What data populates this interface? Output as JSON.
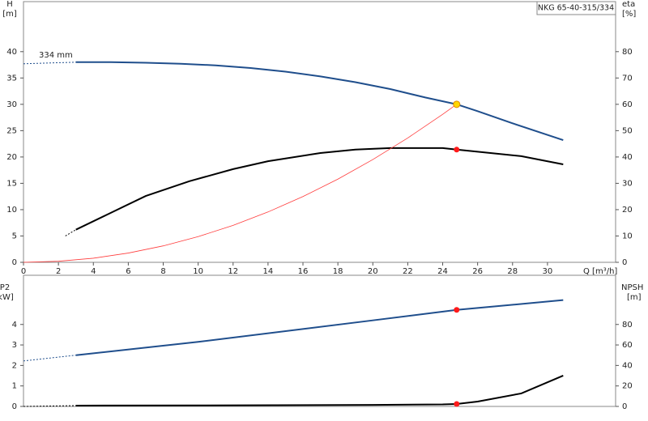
{
  "chart_data": [
    {
      "type": "line",
      "title": "NKG 65-40-315/334",
      "annotation": "334 mm",
      "xlabel": "Q [m³/h]",
      "ylabel": "H",
      "yunit": "[m]",
      "y2label": "eta",
      "y2unit": "[%]",
      "xlim": [
        0,
        33.9
      ],
      "xticks": [
        0,
        2,
        4,
        6,
        8,
        10,
        12,
        14,
        16,
        18,
        20,
        22,
        24,
        26,
        28,
        30
      ],
      "ylim": [
        0,
        49.5
      ],
      "yticks": [
        0,
        5,
        10,
        15,
        20,
        25,
        30,
        35,
        40
      ],
      "y2lim": [
        0,
        99
      ],
      "y2ticks": [
        0,
        10,
        20,
        30,
        40,
        50,
        60,
        70,
        80
      ],
      "series": [
        {
          "color": "#1f4e8c",
          "style": "dashed",
          "x": [
            0,
            3
          ],
          "values": [
            37.7,
            38
          ]
        },
        {
          "color": "#1f4e8c",
          "style": "solid",
          "x": [
            3,
            5,
            7,
            9,
            11,
            13,
            15,
            17,
            19,
            21,
            23,
            24.8,
            26,
            28,
            30.9
          ],
          "values": [
            38,
            38,
            37.9,
            37.7,
            37.4,
            36.9,
            36.2,
            35.3,
            34.2,
            32.9,
            31.3,
            30,
            28.7,
            26.4,
            23.2
          ]
        },
        {
          "color": "#000000",
          "style": "dashed",
          "axis": "y2",
          "x": [
            2.4,
            3
          ],
          "values": [
            10,
            12.4
          ]
        },
        {
          "color": "#000000",
          "style": "solid",
          "axis": "y2",
          "x": [
            3,
            5,
            7,
            9.5,
            12,
            14,
            17,
            19,
            21,
            24,
            24.8,
            26,
            28.5,
            30.9
          ],
          "values": [
            12.4,
            18.8,
            25.2,
            30.8,
            35.4,
            38.4,
            41.5,
            42.8,
            43.4,
            43.4,
            42.8,
            42,
            40.3,
            37.2
          ]
        },
        {
          "color": "#ff3b3b",
          "style": "thin",
          "x": [
            0,
            2,
            4,
            6,
            8,
            10,
            12,
            14,
            16,
            18,
            20,
            22,
            24,
            24.8
          ],
          "values": [
            0,
            0.2,
            0.78,
            1.76,
            3.12,
            4.88,
            7.02,
            9.56,
            12.49,
            15.8,
            19.51,
            23.61,
            28.1,
            30
          ]
        }
      ],
      "markers": [
        {
          "x": 24.8,
          "value": 30,
          "color": "#ffd700"
        },
        {
          "x": 24.8,
          "value": 42.8,
          "color": "#ff1a1a",
          "axis": "y2"
        }
      ]
    },
    {
      "type": "line",
      "ylabel": "P2",
      "yunit": "[kW]",
      "y2label": "NPSH",
      "y2unit": "[m]",
      "xlim": [
        0,
        33.9
      ],
      "ylim": [
        0,
        6.4
      ],
      "yticks": [
        0,
        1,
        2,
        3,
        4
      ],
      "y2lim": [
        0,
        128
      ],
      "y2ticks": [
        0,
        20,
        40,
        60,
        80
      ],
      "series": [
        {
          "color": "#1f4e8c",
          "style": "dashed",
          "x": [
            0,
            3
          ],
          "values": [
            2.22,
            2.5
          ]
        },
        {
          "color": "#1f4e8c",
          "style": "solid",
          "x": [
            3,
            10,
            20,
            24.8,
            30.9
          ],
          "values": [
            2.5,
            3.15,
            4.2,
            4.71,
            5.19
          ]
        },
        {
          "color": "#000000",
          "style": "dashed",
          "axis": "y2",
          "x": [
            0,
            3
          ],
          "values": [
            0,
            0.8
          ]
        },
        {
          "color": "#000000",
          "style": "solid",
          "axis": "y2",
          "x": [
            3,
            10,
            20,
            24,
            24.8,
            26,
            28.5,
            30.9
          ],
          "values": [
            0.8,
            1,
            1.5,
            2,
            2.4,
            4.75,
            12.7,
            30.1
          ]
        }
      ],
      "markers": [
        {
          "x": 24.8,
          "value": 4.71,
          "color": "#ff1a1a"
        },
        {
          "x": 24.8,
          "value": 2.4,
          "color": "#ff1a1a",
          "axis": "y2"
        }
      ]
    }
  ]
}
